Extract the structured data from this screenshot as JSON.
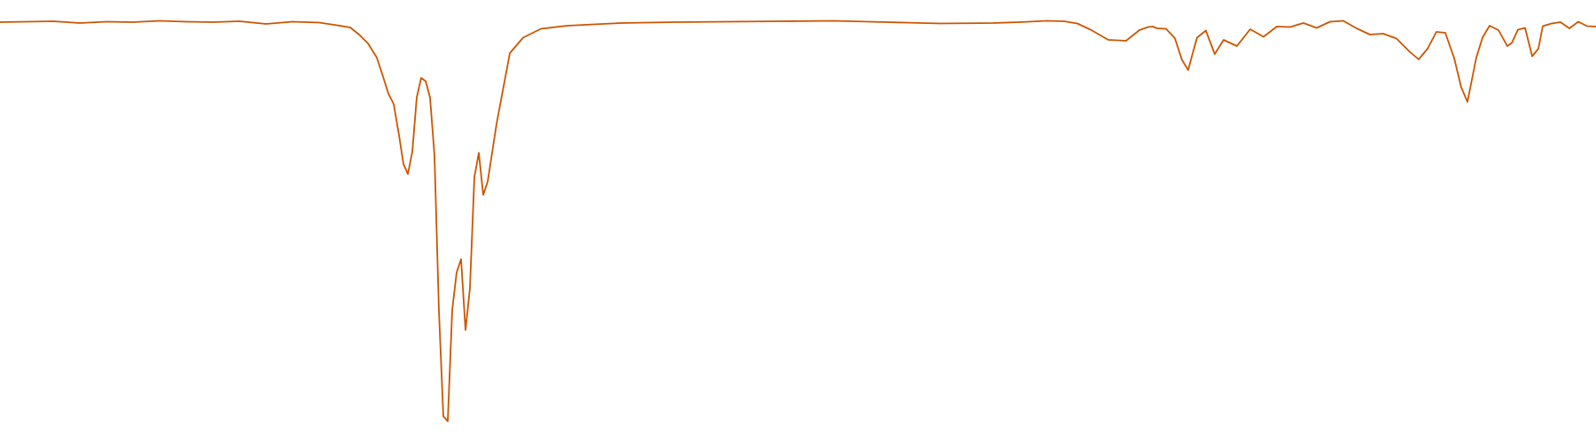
{
  "colors": {
    "background": "#ffffff",
    "line": "#cc5500"
  },
  "chart_data": {
    "type": "line",
    "title": "",
    "xlabel": "",
    "ylabel": "",
    "grid": false,
    "legend": "none",
    "xlim": [
      0,
      1800
    ],
    "ylim": [
      0,
      100
    ],
    "series": [
      {
        "name": "",
        "color": "#cc5500",
        "x": [
          0,
          30,
          60,
          90,
          120,
          150,
          180,
          210,
          240,
          270,
          300,
          330,
          360,
          380,
          395,
          405,
          415,
          425,
          432,
          438,
          444,
          450,
          455,
          460,
          465,
          470,
          475,
          480,
          485,
          490,
          495,
          500,
          505,
          510,
          515,
          520,
          525,
          530,
          535,
          540,
          545,
          550,
          560,
          575,
          590,
          610,
          640,
          700,
          760,
          820,
          880,
          940,
          1000,
          1060,
          1120,
          1150,
          1180,
          1200,
          1215,
          1230,
          1250,
          1270,
          1285,
          1295,
          1300,
          1305,
          1315,
          1325,
          1333,
          1340,
          1350,
          1360,
          1370,
          1380,
          1395,
          1410,
          1425,
          1440,
          1455,
          1470,
          1485,
          1500,
          1515,
          1530,
          1545,
          1560,
          1575,
          1590,
          1600,
          1610,
          1620,
          1630,
          1640,
          1648,
          1655,
          1660,
          1665,
          1672,
          1680,
          1690,
          1700,
          1705,
          1712,
          1720,
          1728,
          1735,
          1740,
          1750,
          1760,
          1770,
          1780,
          1790,
          1800
        ],
        "y": [
          95.0,
          95.1,
          95.2,
          94.8,
          95.1,
          95.0,
          95.3,
          95.1,
          95.0,
          95.2,
          94.6,
          95.1,
          94.9,
          94.3,
          93.8,
          92.2,
          90.2,
          87.0,
          82.7,
          78.9,
          76.5,
          69.5,
          63.0,
          60.7,
          65.7,
          78.0,
          82.4,
          81.7,
          78.0,
          65.0,
          30.0,
          6.0,
          4.9,
          30.0,
          38.5,
          41.5,
          25.5,
          35.0,
          60.0,
          65.5,
          56.0,
          59.0,
          72.0,
          88.0,
          91.5,
          93.5,
          94.2,
          94.8,
          95.0,
          95.1,
          95.2,
          95.3,
          95.0,
          94.7,
          94.8,
          95.0,
          95.3,
          95.2,
          94.7,
          93.3,
          91.0,
          90.8,
          93.2,
          93.9,
          94.0,
          93.6,
          93.5,
          91.4,
          86.5,
          84.2,
          91.5,
          93.1,
          87.8,
          91.0,
          89.6,
          93.4,
          91.7,
          94.0,
          93.9,
          94.8,
          93.7,
          95.1,
          95.3,
          93.6,
          92.2,
          92.4,
          91.3,
          88.3,
          86.6,
          89.0,
          92.8,
          92.6,
          86.9,
          80.3,
          77.0,
          82.0,
          87.0,
          91.5,
          94.2,
          93.2,
          89.6,
          90.3,
          93.3,
          93.7,
          87.3,
          89.0,
          94.1,
          94.7,
          95.0,
          93.6,
          95.1,
          94.1,
          94.0
        ]
      }
    ]
  }
}
